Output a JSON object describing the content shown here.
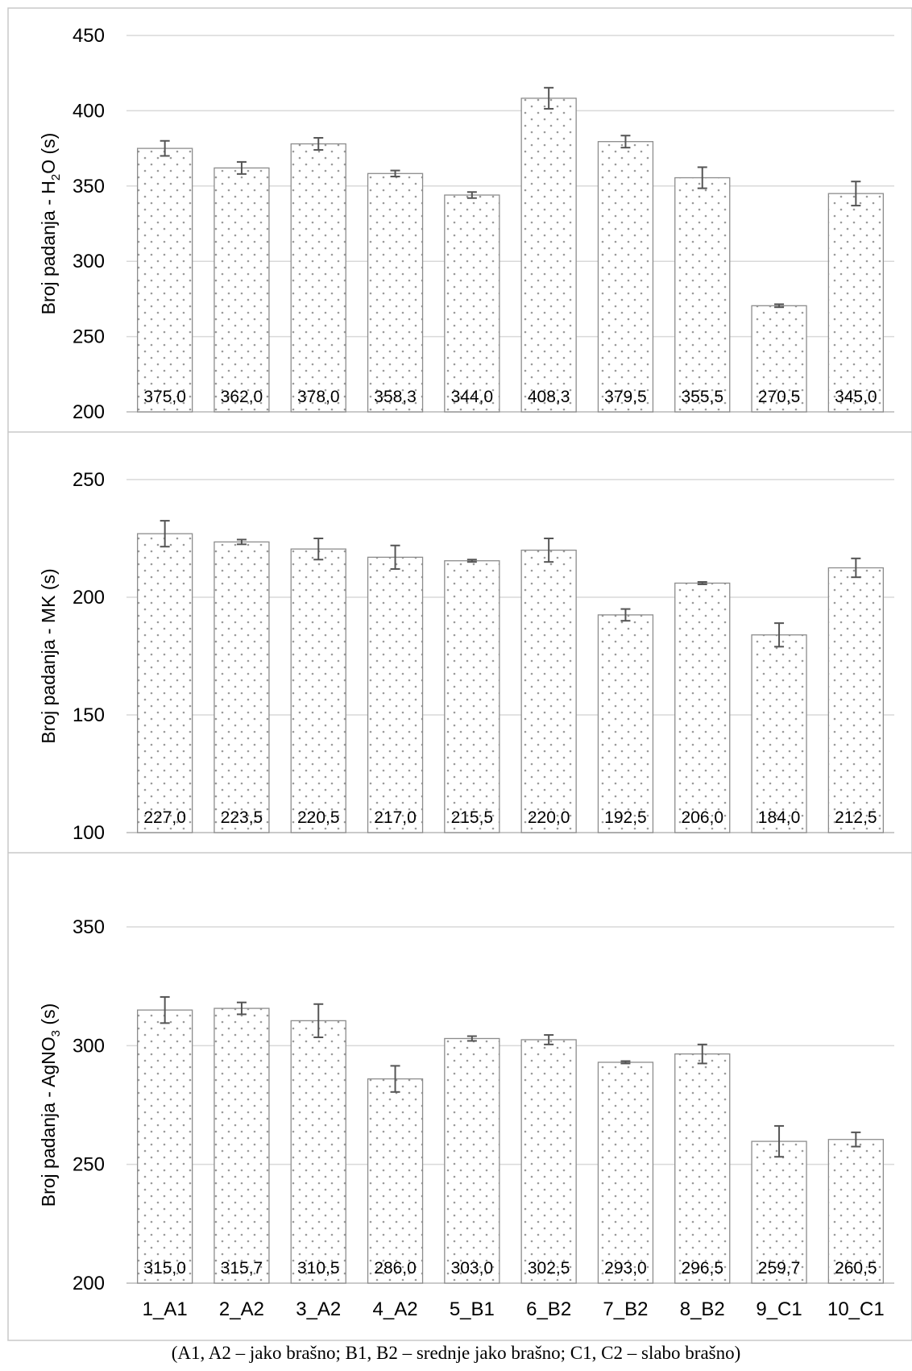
{
  "caption": "(A1, A2 – jako brašno; B1, B2 – srednje jako brašno; C1, C2 – slabo brašno)",
  "chart_data": [
    {
      "type": "bar",
      "ylabel_parts": [
        "Broj padanja - H",
        "2",
        "O (s)"
      ],
      "categories": [
        "1_A1",
        "2_A2",
        "3_A2",
        "4_A2",
        "5_B1",
        "6_B2",
        "7_B2",
        "8_B2",
        "9_C1",
        "10_C1"
      ],
      "values": [
        375.0,
        362.0,
        378.0,
        358.3,
        344.0,
        408.3,
        379.5,
        355.5,
        270.5,
        345.0
      ],
      "labels": [
        "375,0",
        "362,0",
        "378,0",
        "358,3",
        "344,0",
        "408,3",
        "379,5",
        "355,5",
        "270,5",
        "345,0"
      ],
      "errors": [
        5,
        4,
        4,
        2,
        2,
        7,
        4,
        7,
        1,
        8
      ],
      "ylim": [
        200,
        450
      ],
      "yticks": [
        200,
        250,
        300,
        350,
        400,
        450
      ]
    },
    {
      "type": "bar",
      "ylabel_parts": [
        "Broj padanja - MK (s)"
      ],
      "categories": [
        "1_A1",
        "2_A2",
        "3_A2",
        "4_A2",
        "5_B1",
        "6_B2",
        "7_B2",
        "8_B2",
        "9_C1",
        "10_C1"
      ],
      "values": [
        227.0,
        223.5,
        220.5,
        217.0,
        215.5,
        220.0,
        192.5,
        206.0,
        184.0,
        212.5
      ],
      "labels": [
        "227,0",
        "223,5",
        "220,5",
        "217,0",
        "215,5",
        "220,0",
        "192,5",
        "206,0",
        "184,0",
        "212,5"
      ],
      "errors": [
        5.5,
        1,
        4.5,
        5,
        0.5,
        5,
        2.5,
        0.5,
        5,
        4
      ],
      "ylim": [
        100,
        250
      ],
      "yticks": [
        100,
        150,
        200,
        250
      ]
    },
    {
      "type": "bar",
      "ylabel_parts": [
        "Broj padanja - AgNO",
        "3",
        " (s)"
      ],
      "categories": [
        "1_A1",
        "2_A2",
        "3_A2",
        "4_A2",
        "5_B1",
        "6_B2",
        "7_B2",
        "8_B2",
        "9_C1",
        "10_C1"
      ],
      "values": [
        315.0,
        315.7,
        310.5,
        286.0,
        303.0,
        302.5,
        293.0,
        296.5,
        259.7,
        260.5
      ],
      "labels": [
        "315,0",
        "315,7",
        "310,5",
        "286,0",
        "303,0",
        "302,5",
        "293,0",
        "296,5",
        "259,7",
        "260,5"
      ],
      "errors": [
        5.5,
        2.5,
        7,
        5.5,
        1,
        2,
        0.5,
        4,
        6.5,
        3
      ],
      "ylim": [
        200,
        350
      ],
      "yticks": [
        200,
        250,
        300,
        350
      ]
    }
  ]
}
